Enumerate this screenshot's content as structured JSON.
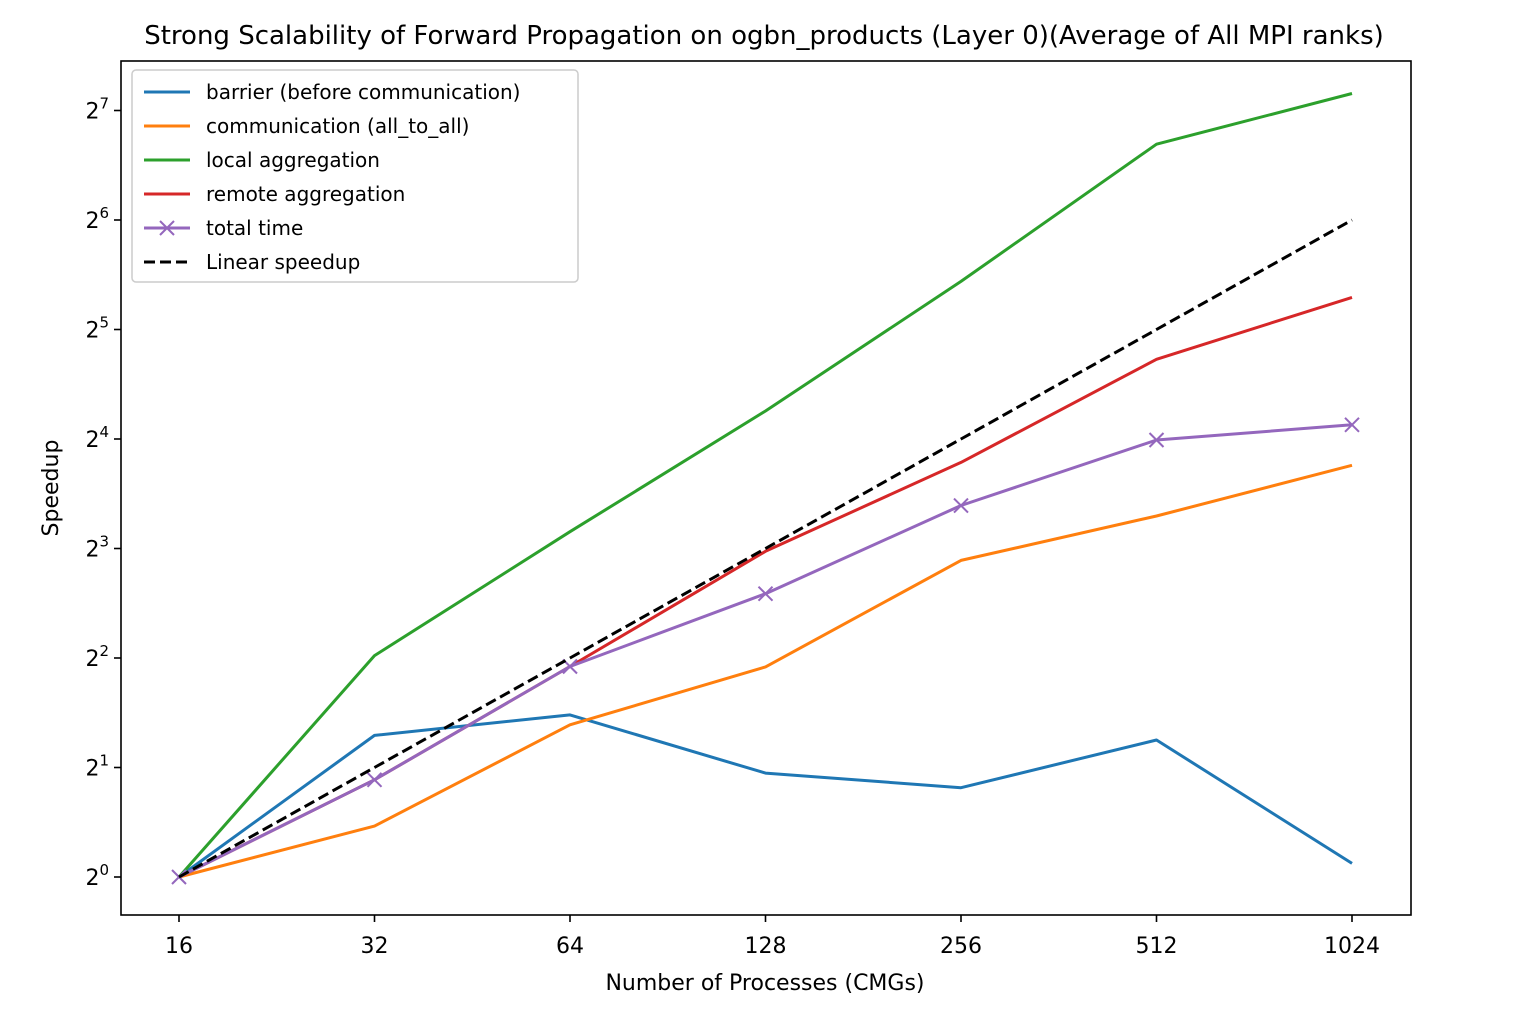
{
  "chart_data": {
    "type": "line",
    "title": "Strong Scalability of Forward Propagation on ogbn_products (Layer 0)(Average of All MPI ranks)",
    "xlabel": "Number of Processes (CMGs)",
    "ylabel": "Speedup",
    "x_scale": "log2",
    "y_scale": "log2",
    "x": [
      16,
      32,
      64,
      128,
      256,
      512,
      1024
    ],
    "x_tick_labels": [
      "16",
      "32",
      "64",
      "128",
      "256",
      "512",
      "1024"
    ],
    "y_ticks": [
      {
        "base": "2",
        "exp": "0",
        "value": 1
      },
      {
        "base": "2",
        "exp": "1",
        "value": 2
      },
      {
        "base": "2",
        "exp": "2",
        "value": 4
      },
      {
        "base": "2",
        "exp": "3",
        "value": 8
      },
      {
        "base": "2",
        "exp": "4",
        "value": 16
      },
      {
        "base": "2",
        "exp": "5",
        "value": 32
      },
      {
        "base": "2",
        "exp": "6",
        "value": 64
      },
      {
        "base": "2",
        "exp": "7",
        "value": 128
      }
    ],
    "ylim": [
      0.79,
      163
    ],
    "grid": false,
    "legend_position": "upper-left",
    "series": [
      {
        "name": "barrier (before communication)",
        "color": "#1f77b4",
        "style": "solid",
        "marker": "none",
        "values": [
          1.0,
          2.45,
          2.79,
          1.93,
          1.76,
          2.38,
          1.09
        ]
      },
      {
        "name": "communication (all_to_all)",
        "color": "#ff7f0e",
        "style": "solid",
        "marker": "none",
        "values": [
          1.0,
          1.38,
          2.62,
          3.78,
          7.42,
          9.83,
          13.55
        ]
      },
      {
        "name": "local aggregation",
        "color": "#2ca02c",
        "style": "solid",
        "marker": "none",
        "values": [
          1.0,
          4.06,
          8.9,
          19.1,
          43.4,
          103.4,
          142.5
        ]
      },
      {
        "name": "remote aggregation",
        "color": "#d62728",
        "style": "solid",
        "marker": "none",
        "values": [
          1.0,
          1.85,
          3.79,
          7.86,
          13.8,
          26.5,
          39.2
        ]
      },
      {
        "name": "total time",
        "color": "#9467bd",
        "style": "solid",
        "marker": "x",
        "values": [
          1.0,
          1.85,
          3.79,
          6.01,
          10.5,
          15.9,
          17.5
        ]
      },
      {
        "name": "Linear speedup",
        "color": "#000000",
        "style": "dashed",
        "marker": "none",
        "values": [
          1,
          2,
          4,
          8,
          16,
          32,
          64
        ]
      }
    ]
  }
}
